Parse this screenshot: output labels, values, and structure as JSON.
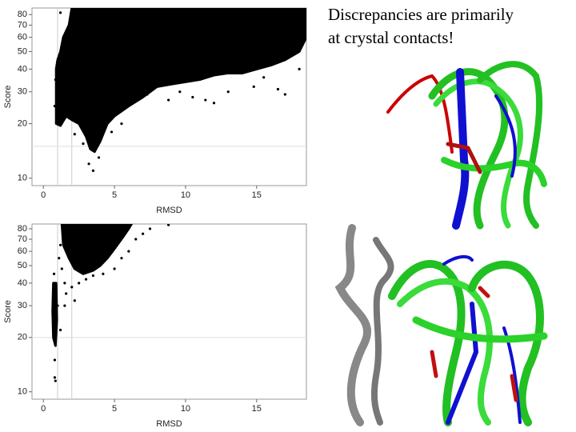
{
  "slide": {
    "caption": [
      "Discrepancies are primarily",
      "at crystal contacts!"
    ]
  },
  "chart_data": [
    {
      "type": "scatter",
      "x_label": "RMSD",
      "y_label": "Score",
      "log_y": true,
      "color": "#000000",
      "xlim": [
        -0.8,
        18.5
      ],
      "ylim": [
        9.1,
        87
      ],
      "xticks": [
        0,
        5,
        10,
        15
      ],
      "yticks": [
        10,
        20,
        30,
        40,
        50,
        60,
        70,
        80
      ],
      "vlines": [
        1,
        2
      ],
      "hlines": [
        15
      ],
      "clouds": [
        {
          "x": [
            1.0,
            0.9,
            0.9,
            1.2,
            1.6,
            2,
            2.5,
            3,
            3.3,
            3.6,
            4,
            4.5,
            5,
            6,
            7,
            8,
            9,
            10,
            11,
            12,
            13,
            14,
            15,
            16,
            17,
            18,
            18.5,
            18.5,
            2,
            1.8,
            1.4,
            1.2
          ],
          "y": [
            45,
            40,
            20,
            19.5,
            22,
            21,
            20,
            17,
            14.5,
            14,
            16,
            20,
            22,
            25,
            28,
            32,
            33,
            34,
            35,
            37,
            38,
            38,
            40,
            42,
            45,
            50,
            60,
            87,
            87,
            70,
            60,
            50
          ]
        }
      ],
      "points": {
        "x": [
          1.2,
          3.5,
          3.2,
          14.8,
          8.8,
          6.7,
          7.3,
          10.5,
          12,
          17,
          16.5,
          13,
          4.8,
          5.5,
          0.8,
          0.85,
          2.2,
          11.4,
          9.6,
          15.5,
          18,
          3.9,
          2.8
        ],
        "y": [
          82,
          11,
          12,
          32,
          27,
          30,
          29,
          28,
          26,
          29,
          31,
          30,
          18,
          20,
          25,
          35,
          17.5,
          27,
          30,
          36,
          40,
          13,
          15.5
        ]
      }
    },
    {
      "type": "scatter",
      "x_label": "RMSD",
      "y_label": "Score",
      "log_y": true,
      "color": "#000000",
      "xlim": [
        -0.8,
        18.5
      ],
      "ylim": [
        9.1,
        85
      ],
      "xticks": [
        0,
        5,
        10,
        15
      ],
      "yticks": [
        10,
        20,
        30,
        40,
        50,
        60,
        70,
        80
      ],
      "vlines": [
        1,
        2
      ],
      "hlines": [
        20
      ],
      "clouds": [
        {
          "x": [
            1.3,
            1.4,
            1.8,
            2.2,
            2.8,
            3.5,
            4,
            4.5,
            5,
            5.6,
            6,
            6.2
          ],
          "y": [
            85,
            65,
            55,
            48,
            45,
            47,
            50,
            55,
            62,
            72,
            80,
            85
          ]
        },
        {
          "x": [
            0.7,
            0.9,
            0.95,
            0.85,
            0.7,
            0.65
          ],
          "y": [
            40,
            40,
            25,
            18,
            20,
            28
          ]
        }
      ],
      "points": {
        "x": [
          1.2,
          1.1,
          1.5,
          2,
          2.5,
          3,
          3.5,
          4.2,
          5,
          6,
          6.5,
          7,
          7.5,
          8.8,
          0.8,
          0.85,
          0.8,
          1.0,
          1.5,
          2.2,
          1.2,
          1.6,
          0.75,
          1.3,
          3.2,
          5.5
        ],
        "y": [
          65,
          55,
          40,
          38,
          40,
          42,
          44,
          45,
          48,
          60,
          70,
          75,
          80,
          84,
          12,
          11.5,
          15,
          30,
          30,
          32,
          22,
          35,
          45,
          48,
          50,
          55
        ]
      }
    }
  ]
}
